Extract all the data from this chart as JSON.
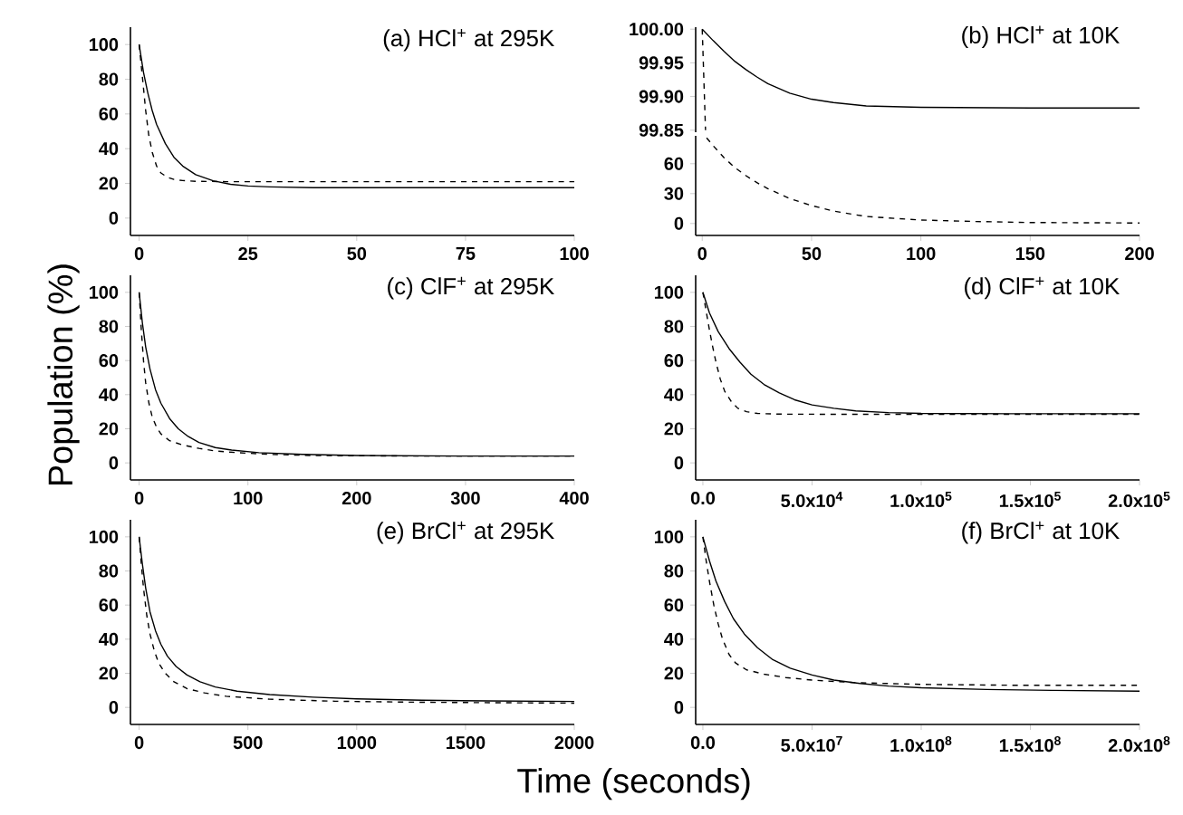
{
  "chart_data": [
    {
      "type": "line",
      "title": "(a) HCl$^{+}$ at 295K",
      "xlim": [
        -2,
        100
      ],
      "ylim": [
        -10,
        110
      ],
      "xticks": [
        0,
        25,
        50,
        75,
        100
      ],
      "yticks": [
        0,
        20,
        40,
        60,
        80,
        100
      ],
      "series": [
        {
          "color": "#000000",
          "line_style": "solid",
          "x": [
            0,
            1,
            2,
            3,
            4,
            6,
            8,
            10,
            13,
            17,
            21,
            25,
            30,
            40,
            60,
            100
          ],
          "values": [
            100,
            84,
            72,
            62,
            54,
            43,
            35,
            30,
            25,
            21.5,
            19.5,
            18.5,
            18,
            17.5,
            17.5,
            17.5
          ]
        },
        {
          "color": "#000000",
          "line_style": "dashed",
          "x": [
            0,
            0.8,
            1.5,
            2.2,
            3,
            4,
            5,
            6.5,
            8,
            10,
            13,
            20,
            40,
            100
          ],
          "values": [
            100,
            80,
            62,
            48,
            38,
            30,
            26,
            23.5,
            22.3,
            21.6,
            21.2,
            21,
            21,
            21
          ]
        }
      ]
    },
    {
      "type": "line",
      "title": "(b) HCl$^{+}$ at 10K",
      "tick_labels": "y",
      "xlim": [
        -3,
        200
      ],
      "ylim": [
        99.847,
        100.003
      ],
      "xticks": [
        0,
        50,
        100,
        150,
        200
      ],
      "yticks": [
        {
          "value": 99.85,
          "label": "99.85"
        },
        {
          "value": 99.9,
          "label": "99.90"
        },
        {
          "value": 99.95,
          "label": "99.95"
        },
        {
          "value": 100,
          "label": "100.00"
        }
      ],
      "series": [
        {
          "color": "#000000",
          "line_style": "solid",
          "x": [
            0,
            5,
            10,
            15,
            20,
            25,
            30,
            40,
            50,
            60,
            75,
            100,
            150,
            200
          ],
          "values": [
            100,
            99.983,
            99.967,
            99.952,
            99.94,
            99.929,
            99.919,
            99.905,
            99.896,
            99.891,
            99.886,
            99.884,
            99.883,
            99.883
          ]
        },
        {
          "color": "#000000",
          "line_style": "dashed",
          "x": [
            0,
            1.5
          ],
          "values": [
            100,
            99.85
          ]
        }
      ]
    },
    {
      "type": "line",
      "xlim": [
        -3,
        200
      ],
      "ylim": [
        -12,
        88
      ],
      "xticks": [
        0,
        50,
        100,
        150,
        200
      ],
      "yticks": [
        0,
        30,
        60
      ],
      "series": [
        {
          "color": "#000000",
          "line_style": "dashed",
          "x": [
            2,
            5,
            10,
            15,
            20,
            25,
            30,
            40,
            50,
            60,
            75,
            100,
            125,
            150,
            200
          ],
          "values": [
            86,
            78,
            66,
            56,
            48,
            41,
            35,
            25,
            18,
            12.5,
            7,
            3.5,
            2,
            1,
            0.5
          ]
        }
      ]
    },
    {
      "type": "line",
      "title": "(c) ClF$^{+}$ at 295K",
      "ylabel": "Population (%)",
      "xlim": [
        -8,
        400
      ],
      "ylim": [
        -10,
        110
      ],
      "xticks": [
        0,
        100,
        200,
        300,
        400
      ],
      "yticks": [
        0,
        20,
        40,
        60,
        80,
        100
      ],
      "series": [
        {
          "color": "#000000",
          "line_style": "solid",
          "x": [
            0,
            3,
            6,
            10,
            15,
            20,
            28,
            36,
            45,
            55,
            70,
            85,
            110,
            150,
            200,
            300,
            400
          ],
          "values": [
            100,
            82,
            68,
            55,
            43,
            35,
            26,
            20,
            15.5,
            12,
            9,
            7.5,
            6,
            5,
            4.3,
            4,
            4
          ]
        },
        {
          "color": "#000000",
          "line_style": "dashed",
          "x": [
            0,
            2,
            4,
            6,
            9,
            12,
            16,
            20,
            28,
            40,
            55,
            70,
            90,
            120,
            160,
            250,
            400
          ],
          "values": [
            100,
            78,
            60,
            47,
            35,
            27,
            21,
            17,
            13,
            10.5,
            8.5,
            7,
            6,
            5,
            4.3,
            4,
            4
          ]
        }
      ]
    },
    {
      "type": "line",
      "title": "(d) ClF$^{+}$ at 10K",
      "xlim": [
        -3300,
        200000
      ],
      "ylim": [
        -10,
        110
      ],
      "xticks": [
        {
          "value": 0,
          "label": "0.0"
        },
        {
          "value": 50000,
          "label": "5.0x10$^{4}$"
        },
        {
          "value": 100000,
          "label": "1.0x10$^{5}$"
        },
        {
          "value": 150000,
          "label": "1.5x10$^{5}$"
        },
        {
          "value": 200000,
          "label": "2.0x10$^{5}$"
        }
      ],
      "yticks": [
        0,
        20,
        40,
        60,
        80,
        100
      ],
      "series": [
        {
          "color": "#000000",
          "line_style": "solid",
          "x": [
            0,
            3000,
            7000,
            12000,
            17000,
            22000,
            28000,
            35000,
            42000,
            50000,
            60000,
            70000,
            85000,
            100000,
            140000,
            200000
          ],
          "values": [
            100,
            88,
            77,
            67,
            59,
            52,
            46,
            41,
            37,
            34,
            32,
            30.5,
            29.5,
            29,
            28.8,
            28.8
          ]
        },
        {
          "color": "#000000",
          "line_style": "dashed",
          "x": [
            0,
            1500,
            3000,
            4500,
            6000,
            8000,
            10000,
            13000,
            16000,
            20000,
            25000,
            35000,
            60000,
            100000,
            200000
          ],
          "values": [
            100,
            89,
            78,
            68,
            59,
            49,
            42,
            36,
            32,
            30,
            29,
            28.6,
            28.5,
            28.5,
            28.5
          ]
        }
      ]
    },
    {
      "type": "line",
      "title": "(e) BrCl$^{+}$ at 295K",
      "xlabel": "Time (seconds)",
      "xlim": [
        -40,
        2000
      ],
      "ylim": [
        -10,
        110
      ],
      "xticks": [
        0,
        500,
        1000,
        1500,
        2000
      ],
      "yticks": [
        0,
        20,
        40,
        60,
        80,
        100
      ],
      "series": [
        {
          "color": "#000000",
          "line_style": "solid",
          "x": [
            0,
            15,
            30,
            50,
            75,
            100,
            130,
            170,
            220,
            280,
            350,
            450,
            600,
            800,
            1000,
            1300,
            1600,
            2000
          ],
          "values": [
            100,
            84,
            70,
            56,
            45,
            37,
            30,
            24,
            19,
            15,
            12,
            9.5,
            7.5,
            6,
            5,
            4.2,
            3.8,
            3.5
          ]
        },
        {
          "color": "#000000",
          "line_style": "dashed",
          "x": [
            0,
            10,
            20,
            35,
            50,
            70,
            90,
            120,
            160,
            220,
            300,
            400,
            600,
            900,
            1300,
            2000
          ],
          "values": [
            100,
            84,
            70,
            54,
            43,
            33,
            26,
            20,
            15,
            11,
            8.5,
            6.5,
            4.8,
            3.6,
            3,
            2.5
          ]
        }
      ]
    },
    {
      "type": "line",
      "title": "(f) BrCl$^{+}$ at 10K",
      "xlim": [
        -3300000,
        200000000
      ],
      "ylim": [
        -10,
        110
      ],
      "xticks": [
        {
          "value": 0,
          "label": "0.0"
        },
        {
          "value": 50000000,
          "label": "5.0x10$^{7}$"
        },
        {
          "value": 100000000,
          "label": "1.0x10$^{8}$"
        },
        {
          "value": 150000000,
          "label": "1.5x10$^{8}$"
        },
        {
          "value": 200000000,
          "label": "2.0x10$^{8}$"
        }
      ],
      "yticks": [
        0,
        20,
        40,
        60,
        80,
        100
      ],
      "series": [
        {
          "color": "#000000",
          "line_style": "solid",
          "x": [
            0,
            3000000,
            6000000,
            10000000,
            14000000,
            19000000,
            25000000,
            32000000,
            40000000,
            50000000,
            60000000,
            72000000,
            85000000,
            100000000,
            130000000,
            160000000,
            200000000
          ],
          "values": [
            100,
            86,
            74,
            62,
            52,
            43,
            35,
            28,
            23,
            19,
            16,
            14,
            12.5,
            11.5,
            10.5,
            10,
            9.5
          ]
        },
        {
          "color": "#000000",
          "line_style": "dashed",
          "x": [
            0,
            1500000,
            3000000,
            5000000,
            7000000,
            9000000,
            12000000,
            15000000,
            20000000,
            28000000,
            38000000,
            50000000,
            70000000,
            100000000,
            140000000,
            200000000
          ],
          "values": [
            100,
            86,
            74,
            60,
            49,
            40,
            31,
            26,
            22,
            19.5,
            17.5,
            16,
            14.5,
            13.5,
            13,
            13
          ]
        }
      ]
    }
  ]
}
